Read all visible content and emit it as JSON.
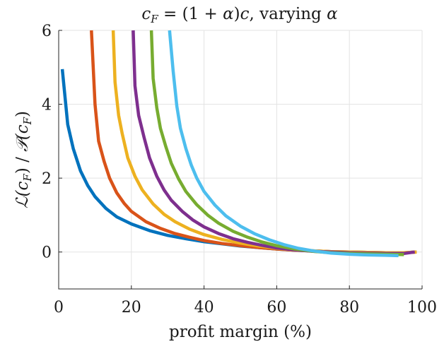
{
  "chart_data": {
    "type": "line",
    "title_parts": [
      "c",
      "F",
      " = (1 + ",
      "α",
      ")",
      "c",
      ", varying ",
      "α"
    ],
    "xlabel": "profit margin (%)",
    "ylabel_parts": [
      "ℒ(",
      "c",
      "F",
      ") / ",
      "𝒫(",
      "c",
      "F",
      ")"
    ],
    "xlim": [
      0,
      100
    ],
    "ylim": [
      -1,
      6
    ],
    "xticks": [
      0,
      20,
      40,
      60,
      80,
      100
    ],
    "yticks": [
      0,
      2,
      4,
      6
    ],
    "xtick_labels": [
      "0",
      "20",
      "40",
      "60",
      "80",
      "100"
    ],
    "ytick_labels": [
      "0",
      "2",
      "4",
      "6"
    ],
    "grid": true,
    "legend": "none",
    "series": [
      {
        "color": "#0072BD",
        "points": [
          [
            1,
            4.95
          ],
          [
            2.5,
            3.45
          ],
          [
            4,
            2.8
          ],
          [
            6,
            2.2
          ],
          [
            8,
            1.8
          ],
          [
            10,
            1.5
          ],
          [
            13,
            1.18
          ],
          [
            16,
            0.95
          ],
          [
            20,
            0.76
          ],
          [
            25,
            0.58
          ],
          [
            30,
            0.45
          ],
          [
            35,
            0.36
          ],
          [
            40,
            0.28
          ],
          [
            45,
            0.22
          ],
          [
            50,
            0.16
          ],
          [
            55,
            0.12
          ],
          [
            60,
            0.08
          ],
          [
            65,
            0.05
          ],
          [
            70,
            0.03
          ],
          [
            75,
            0.01
          ],
          [
            80,
            0.0
          ],
          [
            85,
            -0.01
          ],
          [
            90,
            -0.02
          ],
          [
            94,
            -0.03
          ],
          [
            98,
            0.0
          ]
        ]
      },
      {
        "color": "#D95319",
        "points": [
          [
            9,
            6.0
          ],
          [
            10,
            4.0
          ],
          [
            11,
            3.0
          ],
          [
            12.5,
            2.45
          ],
          [
            14,
            2.0
          ],
          [
            16,
            1.6
          ],
          [
            18,
            1.32
          ],
          [
            20,
            1.1
          ],
          [
            24,
            0.82
          ],
          [
            28,
            0.64
          ],
          [
            32,
            0.5
          ],
          [
            36,
            0.4
          ],
          [
            40,
            0.31
          ],
          [
            45,
            0.23
          ],
          [
            50,
            0.17
          ],
          [
            55,
            0.12
          ],
          [
            60,
            0.08
          ],
          [
            65,
            0.05
          ],
          [
            70,
            0.03
          ],
          [
            75,
            0.01
          ],
          [
            80,
            0.0
          ],
          [
            85,
            -0.01
          ],
          [
            90,
            -0.02
          ],
          [
            95,
            -0.02
          ],
          [
            98.5,
            0.0
          ]
        ]
      },
      {
        "color": "#EDB120",
        "points": [
          [
            15,
            6.0
          ],
          [
            15.5,
            4.6
          ],
          [
            16.5,
            3.7
          ],
          [
            17.5,
            3.2
          ],
          [
            19,
            2.55
          ],
          [
            21,
            2.05
          ],
          [
            23,
            1.68
          ],
          [
            26,
            1.3
          ],
          [
            29,
            1.02
          ],
          [
            32,
            0.82
          ],
          [
            36,
            0.62
          ],
          [
            40,
            0.47
          ],
          [
            45,
            0.34
          ],
          [
            50,
            0.24
          ],
          [
            55,
            0.16
          ],
          [
            60,
            0.1
          ],
          [
            65,
            0.06
          ],
          [
            70,
            0.03
          ],
          [
            75,
            0.01
          ],
          [
            80,
            0.0
          ],
          [
            85,
            -0.01
          ],
          [
            90,
            -0.02
          ],
          [
            95,
            -0.02
          ],
          [
            98.5,
            0.0
          ]
        ]
      },
      {
        "color": "#7E2F8E",
        "points": [
          [
            20.5,
            6.0
          ],
          [
            21,
            4.5
          ],
          [
            22,
            3.7
          ],
          [
            23.5,
            3.1
          ],
          [
            25,
            2.55
          ],
          [
            27,
            2.05
          ],
          [
            29,
            1.68
          ],
          [
            31,
            1.4
          ],
          [
            34,
            1.1
          ],
          [
            37,
            0.86
          ],
          [
            40,
            0.68
          ],
          [
            44,
            0.5
          ],
          [
            48,
            0.36
          ],
          [
            52,
            0.26
          ],
          [
            56,
            0.18
          ],
          [
            60,
            0.11
          ],
          [
            65,
            0.06
          ],
          [
            70,
            0.02
          ],
          [
            75,
            0.0
          ],
          [
            80,
            -0.02
          ],
          [
            85,
            -0.03
          ],
          [
            90,
            -0.04
          ],
          [
            95,
            -0.04
          ],
          [
            98,
            0.0
          ]
        ]
      },
      {
        "color": "#77AC30",
        "points": [
          [
            25.5,
            6.0
          ],
          [
            26,
            4.7
          ],
          [
            27,
            3.9
          ],
          [
            28,
            3.35
          ],
          [
            29.5,
            2.85
          ],
          [
            31,
            2.4
          ],
          [
            33,
            1.98
          ],
          [
            35,
            1.64
          ],
          [
            38,
            1.28
          ],
          [
            41,
            1.0
          ],
          [
            44,
            0.78
          ],
          [
            48,
            0.56
          ],
          [
            52,
            0.4
          ],
          [
            56,
            0.27
          ],
          [
            60,
            0.17
          ],
          [
            65,
            0.08
          ],
          [
            70,
            0.02
          ],
          [
            75,
            -0.02
          ],
          [
            80,
            -0.04
          ],
          [
            85,
            -0.05
          ],
          [
            90,
            -0.06
          ],
          [
            95,
            -0.07
          ]
        ]
      },
      {
        "color": "#4DBEEE",
        "points": [
          [
            30.5,
            6.0
          ],
          [
            31.5,
            4.9
          ],
          [
            32.5,
            3.95
          ],
          [
            33.5,
            3.35
          ],
          [
            35,
            2.8
          ],
          [
            36.5,
            2.35
          ],
          [
            38,
            2.0
          ],
          [
            40,
            1.64
          ],
          [
            43,
            1.27
          ],
          [
            46,
            0.98
          ],
          [
            50,
            0.7
          ],
          [
            54,
            0.49
          ],
          [
            58,
            0.33
          ],
          [
            62,
            0.2
          ],
          [
            66,
            0.1
          ],
          [
            70,
            0.03
          ],
          [
            75,
            -0.03
          ],
          [
            80,
            -0.06
          ],
          [
            85,
            -0.08
          ],
          [
            90,
            -0.09
          ],
          [
            93.5,
            -0.1
          ]
        ]
      }
    ]
  }
}
